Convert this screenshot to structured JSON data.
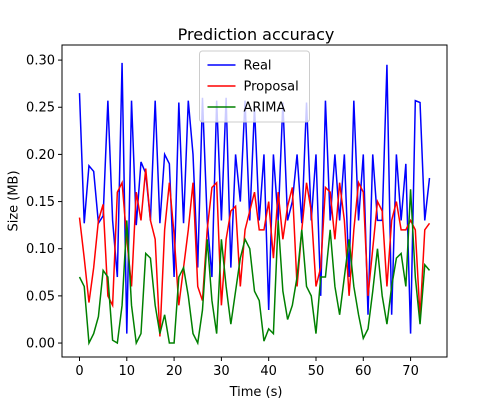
{
  "chart_data": {
    "type": "line",
    "title": "Prediction accuracy",
    "xlabel": "Time (s)",
    "ylabel": "Size (MB)",
    "x": [
      0,
      1,
      2,
      3,
      4,
      5,
      6,
      7,
      8,
      9,
      10,
      11,
      12,
      13,
      14,
      15,
      16,
      17,
      18,
      19,
      20,
      21,
      22,
      23,
      24,
      25,
      26,
      27,
      28,
      29,
      30,
      31,
      32,
      33,
      34,
      35,
      36,
      37,
      38,
      39,
      40,
      41,
      42,
      43,
      44,
      45,
      46,
      47,
      48,
      49,
      50,
      51,
      52,
      53,
      54,
      55,
      56,
      57,
      58,
      59,
      60,
      61,
      62,
      63,
      64,
      65,
      66,
      67,
      68,
      69,
      70,
      71,
      72,
      73,
      74
    ],
    "series": [
      {
        "name": "Real",
        "color": "#0000ff",
        "values": [
          0.265,
          0.127,
          0.188,
          0.182,
          0.127,
          0.135,
          0.257,
          0.13,
          0.07,
          0.297,
          0.01,
          0.257,
          0.125,
          0.192,
          0.18,
          0.13,
          0.257,
          0.127,
          0.2,
          0.19,
          0.07,
          0.255,
          0.127,
          0.257,
          0.2,
          0.08,
          0.26,
          0.13,
          0.07,
          0.257,
          0.13,
          0.26,
          0.08,
          0.2,
          0.15,
          0.257,
          0.13,
          0.25,
          0.13,
          0.2,
          0.035,
          0.2,
          0.13,
          0.255,
          0.13,
          0.15,
          0.2,
          0.127,
          0.255,
          0.13,
          0.2,
          0.05,
          0.257,
          0.13,
          0.2,
          0.13,
          0.2,
          0.07,
          0.257,
          0.13,
          0.2,
          0.03,
          0.2,
          0.13,
          0.13,
          0.295,
          0.03,
          0.2,
          0.13,
          0.19,
          0.01,
          0.257,
          0.255,
          0.13,
          0.175
        ]
      },
      {
        "name": "Proposal",
        "color": "#ff0000",
        "values": [
          0.133,
          0.09,
          0.043,
          0.08,
          0.13,
          0.147,
          0.05,
          0.04,
          0.16,
          0.17,
          0.11,
          0.06,
          0.16,
          0.13,
          0.185,
          0.13,
          0.11,
          0.007,
          0.12,
          0.17,
          0.115,
          0.04,
          0.08,
          0.12,
          0.17,
          0.06,
          0.045,
          0.12,
          0.165,
          0.17,
          0.04,
          0.11,
          0.14,
          0.145,
          0.06,
          0.12,
          0.14,
          0.16,
          0.12,
          0.12,
          0.15,
          0.09,
          0.16,
          0.11,
          0.145,
          0.165,
          0.06,
          0.12,
          0.17,
          0.14,
          0.06,
          0.08,
          0.165,
          0.16,
          0.11,
          0.17,
          0.13,
          0.05,
          0.12,
          0.17,
          0.16,
          0.05,
          0.1,
          0.15,
          0.14,
          0.06,
          0.13,
          0.15,
          0.12,
          0.12,
          0.13,
          0.12,
          0.027,
          0.12,
          0.127
        ]
      },
      {
        "name": "ARIMA",
        "color": "#008000",
        "values": [
          0.07,
          0.06,
          0.0,
          0.01,
          0.028,
          0.077,
          0.07,
          0.003,
          0.0,
          0.04,
          0.13,
          0.04,
          0.0,
          0.01,
          0.095,
          0.09,
          0.04,
          0.01,
          0.03,
          0.0,
          0.0,
          0.07,
          0.08,
          0.05,
          0.01,
          0.0,
          0.035,
          0.11,
          0.045,
          0.01,
          0.11,
          0.06,
          0.02,
          0.055,
          0.09,
          0.11,
          0.1,
          0.055,
          0.045,
          0.002,
          0.015,
          0.01,
          0.13,
          0.055,
          0.025,
          0.04,
          0.07,
          0.12,
          0.06,
          0.05,
          0.01,
          0.07,
          0.07,
          0.12,
          0.06,
          0.03,
          0.07,
          0.11,
          0.06,
          0.03,
          0.005,
          0.015,
          0.055,
          0.1,
          0.05,
          0.02,
          0.06,
          0.09,
          0.095,
          0.06,
          0.163,
          0.07,
          0.02,
          0.083,
          0.077
        ]
      }
    ],
    "xlim": [
      -3.7,
      77.7
    ],
    "ylim": [
      -0.0148,
      0.316
    ],
    "xticks": [
      0,
      10,
      20,
      30,
      40,
      50,
      60,
      70
    ],
    "yticks": [
      {
        "value": 0,
        "label": "0.00"
      },
      0.05,
      {
        "value": 0.1,
        "label": "0.10"
      },
      0.15,
      {
        "value": 0.2,
        "label": "0.20"
      },
      0.25,
      {
        "value": 0.3,
        "label": "0.30"
      }
    ],
    "legend": "upper center"
  }
}
